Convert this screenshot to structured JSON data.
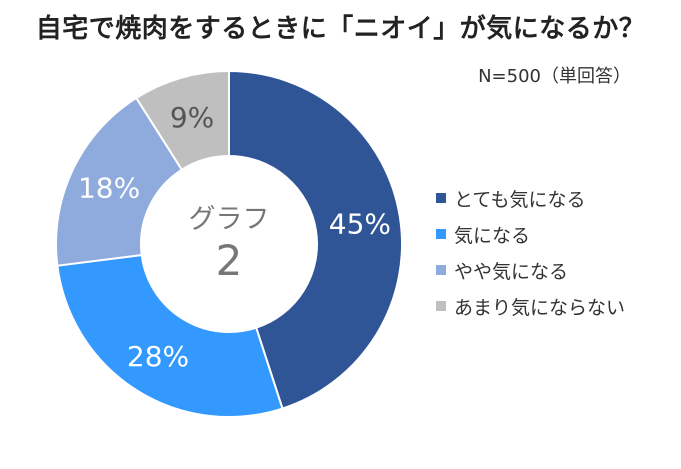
{
  "chart_data": {
    "type": "pie",
    "title": "自宅で焼肉をするときに「ニオイ」が気になるか？",
    "note": "N=500（単回答）",
    "center_label": "グラフ",
    "center_number": "2",
    "slices": [
      {
        "label": "とても気になる",
        "value": 45,
        "value_label": "45%",
        "color": "#2f5597"
      },
      {
        "label": "気になる",
        "value": 28,
        "value_label": "28%",
        "color": "#3399ff"
      },
      {
        "label": "やや気になる",
        "value": 18,
        "value_label": "18%",
        "color": "#8faadc"
      },
      {
        "label": "あまり気にならない",
        "value": 9,
        "value_label": "9%",
        "color": "#bfbfbf"
      }
    ],
    "legend_placement": "right"
  }
}
